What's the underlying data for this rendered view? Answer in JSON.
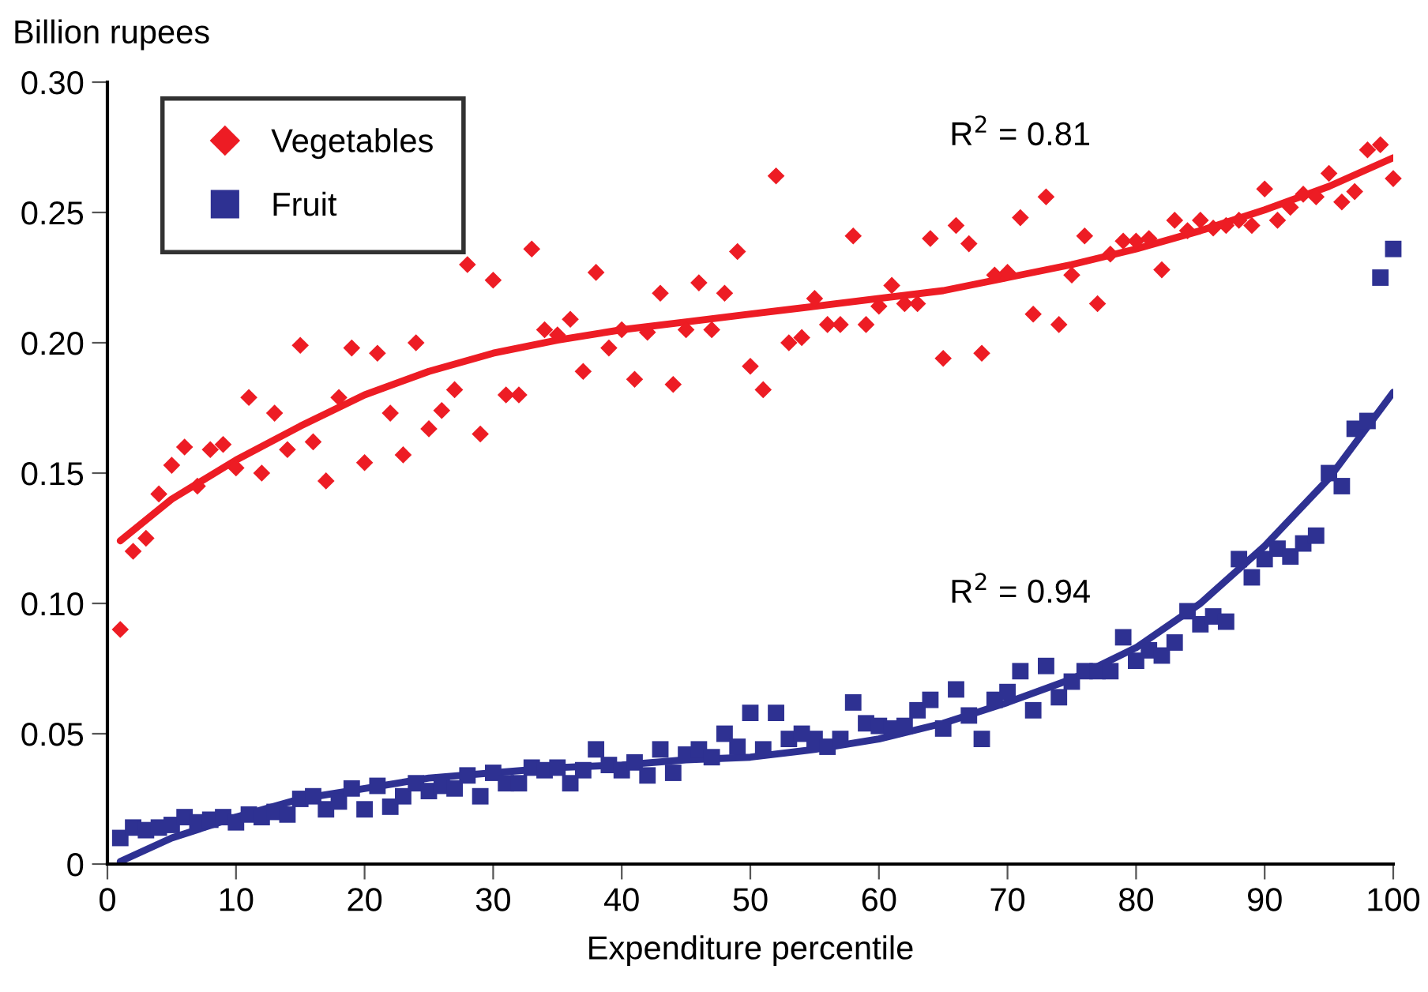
{
  "chart_data": {
    "type": "scatter",
    "xlabel": "Expenditure percentile",
    "ylabel": "Billion rupees",
    "xlim": [
      0,
      100
    ],
    "xticks": [
      0,
      10,
      20,
      30,
      40,
      50,
      60,
      70,
      80,
      90,
      100
    ],
    "ylim": [
      0,
      0.3
    ],
    "yticks": [
      {
        "value": 0,
        "label": "0"
      },
      0.05,
      {
        "value": 0.1,
        "label": "0.10"
      },
      0.15,
      {
        "value": 0.2,
        "label": "0.20"
      },
      0.25,
      {
        "value": 0.3,
        "label": "0.30"
      }
    ],
    "grid": false,
    "legend": "top left",
    "annotations": [
      "R$^{2}$ = 0.81",
      "R$^{2}$ = 0.94"
    ],
    "series": [
      {
        "name": "Vegetables",
        "marker": "diamond",
        "color": "#ed1c24",
        "x": [
          1,
          2,
          3,
          4,
          5,
          6,
          7,
          8,
          9,
          10,
          11,
          12,
          13,
          14,
          15,
          16,
          17,
          18,
          19,
          20,
          21,
          22,
          23,
          24,
          25,
          26,
          27,
          28,
          29,
          30,
          31,
          32,
          33,
          34,
          35,
          36,
          37,
          38,
          39,
          40,
          41,
          42,
          43,
          44,
          45,
          46,
          47,
          48,
          49,
          50,
          51,
          52,
          53,
          54,
          55,
          56,
          57,
          58,
          59,
          60,
          61,
          62,
          63,
          64,
          65,
          66,
          67,
          68,
          69,
          70,
          71,
          72,
          73,
          74,
          75,
          76,
          77,
          78,
          79,
          80,
          81,
          82,
          83,
          84,
          85,
          86,
          87,
          88,
          89,
          90,
          91,
          92,
          93,
          94,
          95,
          96,
          97,
          98,
          99,
          100
        ],
        "values": [
          0.09,
          0.12,
          0.125,
          0.142,
          0.153,
          0.16,
          0.145,
          0.159,
          0.161,
          0.152,
          0.179,
          0.15,
          0.173,
          0.159,
          0.199,
          0.162,
          0.147,
          0.179,
          0.198,
          0.154,
          0.196,
          0.173,
          0.157,
          0.2,
          0.167,
          0.174,
          0.182,
          0.23,
          0.165,
          0.224,
          0.18,
          0.18,
          0.236,
          0.205,
          0.203,
          0.209,
          0.189,
          0.227,
          0.198,
          0.205,
          0.186,
          0.204,
          0.219,
          0.184,
          0.205,
          0.223,
          0.205,
          0.219,
          0.235,
          0.191,
          0.182,
          0.264,
          0.2,
          0.202,
          0.217,
          0.207,
          0.207,
          0.241,
          0.207,
          0.214,
          0.222,
          0.215,
          0.215,
          0.24,
          0.194,
          0.245,
          0.238,
          0.196,
          0.226,
          0.227,
          0.248,
          0.211,
          0.256,
          0.207,
          0.226,
          0.241,
          0.215,
          0.234,
          0.239,
          0.239,
          0.24,
          0.228,
          0.247,
          0.243,
          0.247,
          0.244,
          0.245,
          0.247,
          0.245,
          0.259,
          0.247,
          0.252,
          0.257,
          0.256,
          0.265,
          0.254,
          0.258,
          0.274,
          0.276,
          0.263
        ]
      },
      {
        "name": "Fruit",
        "marker": "square",
        "color": "#2e3192",
        "x": [
          1,
          2,
          3,
          4,
          5,
          6,
          7,
          8,
          9,
          10,
          11,
          12,
          13,
          14,
          15,
          16,
          17,
          18,
          19,
          20,
          21,
          22,
          23,
          24,
          25,
          26,
          27,
          28,
          29,
          30,
          31,
          32,
          33,
          34,
          35,
          36,
          37,
          38,
          39,
          40,
          41,
          42,
          43,
          44,
          45,
          46,
          47,
          48,
          49,
          50,
          51,
          52,
          53,
          54,
          55,
          56,
          57,
          58,
          59,
          60,
          61,
          62,
          63,
          64,
          65,
          66,
          67,
          68,
          69,
          70,
          71,
          72,
          73,
          74,
          75,
          76,
          77,
          78,
          79,
          80,
          81,
          82,
          83,
          84,
          85,
          86,
          87,
          88,
          89,
          90,
          91,
          92,
          93,
          94,
          95,
          96,
          97,
          98,
          99,
          100
        ],
        "values": [
          0.01,
          0.014,
          0.013,
          0.014,
          0.015,
          0.018,
          0.016,
          0.017,
          0.018,
          0.016,
          0.019,
          0.018,
          0.02,
          0.019,
          0.025,
          0.026,
          0.021,
          0.024,
          0.029,
          0.021,
          0.03,
          0.022,
          0.026,
          0.031,
          0.028,
          0.03,
          0.029,
          0.034,
          0.026,
          0.035,
          0.031,
          0.031,
          0.037,
          0.036,
          0.037,
          0.031,
          0.036,
          0.044,
          0.038,
          0.036,
          0.039,
          0.034,
          0.044,
          0.035,
          0.042,
          0.044,
          0.041,
          0.05,
          0.045,
          0.058,
          0.044,
          0.058,
          0.048,
          0.05,
          0.048,
          0.045,
          0.048,
          0.062,
          0.054,
          0.053,
          0.052,
          0.053,
          0.059,
          0.063,
          0.052,
          0.067,
          0.057,
          0.048,
          0.063,
          0.066,
          0.074,
          0.059,
          0.076,
          0.064,
          0.07,
          0.074,
          0.074,
          0.074,
          0.087,
          0.078,
          0.082,
          0.08,
          0.085,
          0.097,
          0.092,
          0.095,
          0.093,
          0.117,
          0.11,
          0.117,
          0.121,
          0.118,
          0.123,
          0.126,
          0.15,
          0.145,
          0.167,
          0.17,
          0.225,
          0.236
        ]
      },
      {
        "type": "line",
        "marker": "none",
        "line_style": "solid",
        "color": "#ed1c24",
        "x": [
          1,
          5,
          10,
          15,
          20,
          25,
          30,
          35,
          40,
          45,
          50,
          55,
          60,
          65,
          70,
          75,
          80,
          85,
          90,
          95,
          100
        ],
        "values": [
          0.124,
          0.14,
          0.155,
          0.168,
          0.18,
          0.189,
          0.196,
          0.201,
          0.205,
          0.208,
          0.211,
          0.214,
          0.217,
          0.22,
          0.225,
          0.23,
          0.236,
          0.243,
          0.251,
          0.26,
          0.271
        ]
      },
      {
        "type": "line",
        "marker": "none",
        "line_style": "solid",
        "color": "#2e3192",
        "x": [
          1,
          5,
          10,
          15,
          20,
          25,
          30,
          35,
          40,
          45,
          50,
          55,
          60,
          65,
          70,
          75,
          80,
          85,
          90,
          95,
          100
        ],
        "values": [
          0.001,
          0.01,
          0.018,
          0.025,
          0.029,
          0.033,
          0.035,
          0.037,
          0.038,
          0.04,
          0.041,
          0.044,
          0.048,
          0.054,
          0.062,
          0.071,
          0.083,
          0.1,
          0.122,
          0.148,
          0.181
        ]
      }
    ]
  }
}
